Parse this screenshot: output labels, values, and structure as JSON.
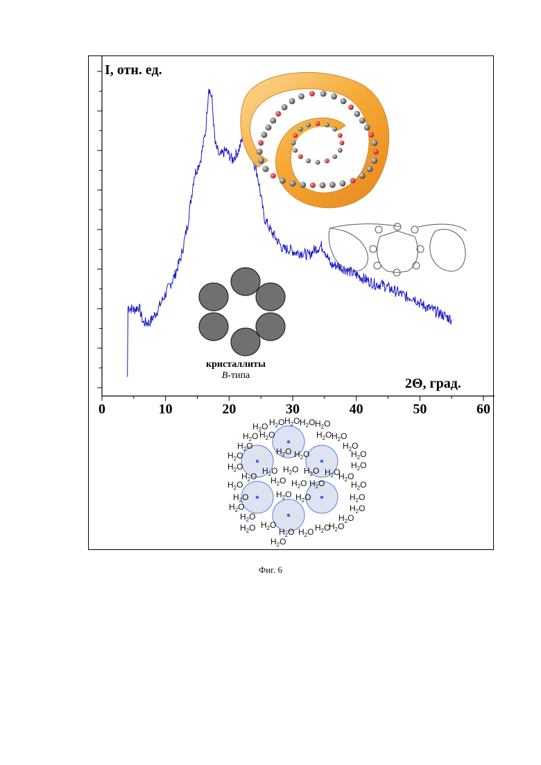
{
  "figure_caption": "Фиг. 6",
  "colors": {
    "curve": "#1515c8",
    "particle": "#707070",
    "granule_fill": "#dde3f0",
    "granule_edge": "#6d8fe0",
    "granule_dot": "#3b6ee0",
    "helix_orange": "#f3a230"
  },
  "labels": {
    "crystallites_line1": "кристаллиты",
    "crystallites_line2_italic": "B",
    "crystallites_line2_rest": "-типа",
    "water_h": "H",
    "water_sub": "2",
    "water_o": "O"
  },
  "chart_data": {
    "type": "line",
    "ylabel": "I, отн. ед.",
    "xlabel": "2Θ, град.",
    "xlim": [
      0,
      60
    ],
    "xticks": [
      0,
      10,
      20,
      30,
      40,
      50,
      60
    ],
    "ytick_labels": "none (unlabeled ticks)",
    "grid": false,
    "series": [
      {
        "points": [
          [
            4.0,
            0.06
          ],
          [
            4.1,
            0.28
          ],
          [
            5.0,
            0.27
          ],
          [
            5.8,
            0.28
          ],
          [
            6.5,
            0.23
          ],
          [
            7.5,
            0.23
          ],
          [
            8.5,
            0.26
          ],
          [
            10.0,
            0.32
          ],
          [
            11.5,
            0.38
          ],
          [
            12.5,
            0.44
          ],
          [
            13.5,
            0.54
          ],
          [
            14.5,
            0.69
          ],
          [
            15.5,
            0.74
          ],
          [
            16.3,
            0.83
          ],
          [
            16.8,
            0.97
          ],
          [
            17.3,
            0.93
          ],
          [
            17.8,
            0.79
          ],
          [
            18.5,
            0.75
          ],
          [
            19.5,
            0.77
          ],
          [
            20.5,
            0.74
          ],
          [
            21.5,
            0.77
          ],
          [
            22.3,
            0.82
          ],
          [
            23.0,
            0.79
          ],
          [
            23.8,
            0.74
          ],
          [
            24.5,
            0.69
          ],
          [
            25.5,
            0.56
          ],
          [
            26.5,
            0.52
          ],
          [
            27.5,
            0.49
          ],
          [
            28.5,
            0.46
          ],
          [
            29.5,
            0.46
          ],
          [
            30.5,
            0.45
          ],
          [
            31.5,
            0.45
          ],
          [
            32.5,
            0.44
          ],
          [
            33.5,
            0.46
          ],
          [
            34.5,
            0.47
          ],
          [
            35.0,
            0.46
          ],
          [
            36.0,
            0.41
          ],
          [
            37.0,
            0.41
          ],
          [
            38.0,
            0.4
          ],
          [
            39.0,
            0.39
          ],
          [
            40.0,
            0.38
          ],
          [
            41.0,
            0.37
          ],
          [
            42.0,
            0.36
          ],
          [
            43.0,
            0.35
          ],
          [
            44.0,
            0.35
          ],
          [
            45.0,
            0.34
          ],
          [
            46.0,
            0.33
          ],
          [
            47.0,
            0.32
          ],
          [
            48.0,
            0.31
          ],
          [
            49.0,
            0.31
          ],
          [
            50.0,
            0.29
          ],
          [
            51.0,
            0.28
          ],
          [
            52.0,
            0.27
          ],
          [
            53.0,
            0.26
          ],
          [
            54.0,
            0.25
          ],
          [
            55.0,
            0.24
          ]
        ]
      }
    ]
  }
}
